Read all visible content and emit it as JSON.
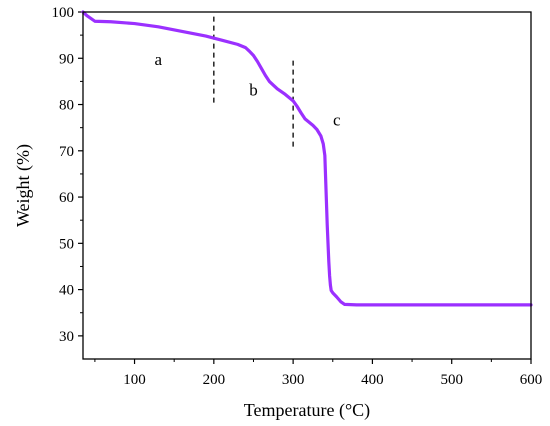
{
  "chart_data": {
    "type": "line",
    "xlabel": "Temperature (°C)",
    "ylabel": "Weight (%)",
    "xlim": [
      35,
      600
    ],
    "ylim": [
      25,
      100
    ],
    "x_ticks": [
      100,
      200,
      300,
      400,
      500,
      600
    ],
    "y_ticks": [
      30,
      40,
      50,
      60,
      70,
      80,
      90,
      100
    ],
    "grid": false,
    "series": [
      {
        "color": "#9B30FF",
        "x": [
          35,
          40,
          50,
          70,
          100,
          130,
          160,
          190,
          210,
          230,
          240,
          245,
          250,
          255,
          260,
          265,
          270,
          280,
          290,
          300,
          305,
          310,
          315,
          320,
          325,
          330,
          335,
          338,
          340,
          341,
          342,
          343,
          344,
          345,
          346,
          347,
          348,
          350,
          355,
          360,
          365,
          380,
          400,
          450,
          500,
          550,
          600
        ],
        "y": [
          100,
          99.2,
          98,
          97.9,
          97.5,
          96.8,
          95.8,
          94.8,
          93.9,
          93,
          92.3,
          91.5,
          90.6,
          89.3,
          87.8,
          86.3,
          85,
          83.4,
          82.2,
          80.8,
          79.6,
          78.2,
          76.9,
          76.2,
          75.5,
          74.6,
          73.2,
          71.5,
          69,
          64,
          59,
          54,
          50,
          46,
          43,
          41,
          39.8,
          39.3,
          38.4,
          37.4,
          36.8,
          36.7,
          36.7,
          36.7,
          36.7,
          36.7,
          36.7
        ]
      }
    ],
    "reference_lines": [
      {
        "x": 200,
        "y_from": 80,
        "y_to": 99
      },
      {
        "x": 300,
        "y_from": 70.5,
        "y_to": 89.5
      }
    ],
    "annotations": [
      {
        "text": "a",
        "x": 130,
        "y": 88.5
      },
      {
        "text": "b",
        "x": 250,
        "y": 82
      },
      {
        "text": "c",
        "x": 355,
        "y": 75.5
      }
    ]
  }
}
